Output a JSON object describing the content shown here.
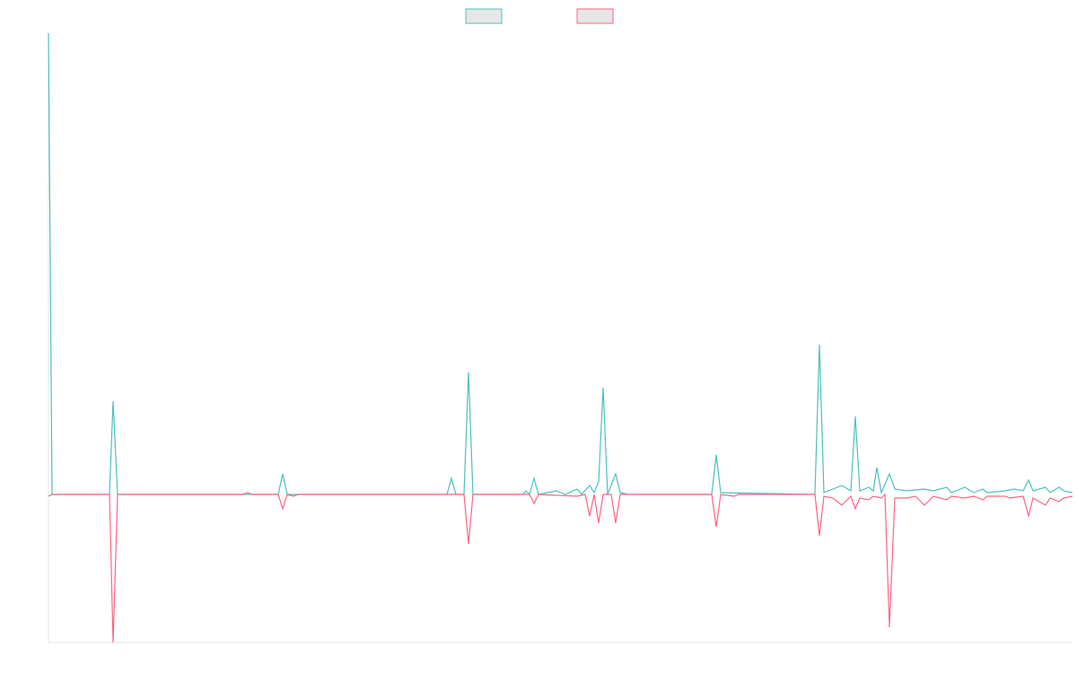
{
  "chart_data": {
    "type": "line",
    "legend": "top",
    "xlim": [
      0,
      1141
    ],
    "ylim": [
      -165,
      514
    ],
    "series": [
      {
        "color": "#4bc0c0",
        "x": [
          0,
          4,
          68,
          72,
          77,
          185,
          256,
          261,
          266,
          444,
          449,
          454,
          463,
          468,
          473,
          529,
          532,
          536,
          541,
          546,
          566,
          576,
          589,
          594,
          603,
          608,
          613,
          618,
          623,
          632,
          637,
          646,
          739,
          744,
          749,
          854,
          859,
          864,
          874,
          884,
          894,
          899,
          904,
          914,
          919,
          923,
          928,
          937,
          943,
          956,
          976,
          986,
          1001,
          1006,
          1021,
          1031,
          1041,
          1046,
          1066,
          1076,
          1086,
          1092,
          1097,
          1111,
          1116,
          1126,
          1131,
          1141
        ],
        "values": [
          514,
          0,
          0,
          104,
          0,
          0,
          0,
          23,
          0,
          0,
          18,
          0,
          0,
          136,
          0,
          0,
          4,
          0,
          18,
          0,
          4,
          0,
          6,
          0,
          10,
          2,
          14,
          119,
          0,
          23,
          2,
          0,
          0,
          44,
          2,
          0,
          167,
          2,
          6,
          10,
          4,
          87,
          4,
          8,
          4,
          30,
          2,
          23,
          6,
          4,
          6,
          4,
          8,
          2,
          8,
          2,
          6,
          2,
          4,
          6,
          4,
          16,
          4,
          8,
          2,
          8,
          4,
          2
        ]
      },
      {
        "color": "#ff6384",
        "x": [
          0,
          4,
          68,
          72,
          77,
          216,
          222,
          227,
          256,
          261,
          266,
          273,
          278,
          463,
          468,
          473,
          536,
          541,
          546,
          589,
          598,
          603,
          608,
          613,
          618,
          627,
          632,
          637,
          739,
          744,
          749,
          764,
          769,
          854,
          859,
          864,
          874,
          884,
          894,
          899,
          904,
          914,
          919,
          928,
          932,
          937,
          943,
          956,
          966,
          976,
          986,
          1001,
          1006,
          1021,
          1031,
          1041,
          1046,
          1066,
          1071,
          1086,
          1092,
          1097,
          1111,
          1116,
          1126,
          1131,
          1141
        ],
        "values": [
          -2,
          0,
          0,
          -165,
          0,
          0,
          2,
          0,
          0,
          -16,
          0,
          -2,
          0,
          0,
          -55,
          0,
          0,
          -10,
          0,
          -2,
          0,
          -24,
          0,
          -32,
          0,
          0,
          -32,
          0,
          0,
          -36,
          0,
          -2,
          0,
          0,
          -46,
          -2,
          -4,
          -12,
          -2,
          -16,
          -4,
          -6,
          -2,
          -4,
          0,
          -148,
          -4,
          -4,
          -2,
          -12,
          -2,
          -6,
          -2,
          -4,
          -2,
          -6,
          -2,
          -2,
          -4,
          -2,
          -24,
          -4,
          -12,
          -4,
          -8,
          -4,
          -2
        ]
      }
    ]
  }
}
